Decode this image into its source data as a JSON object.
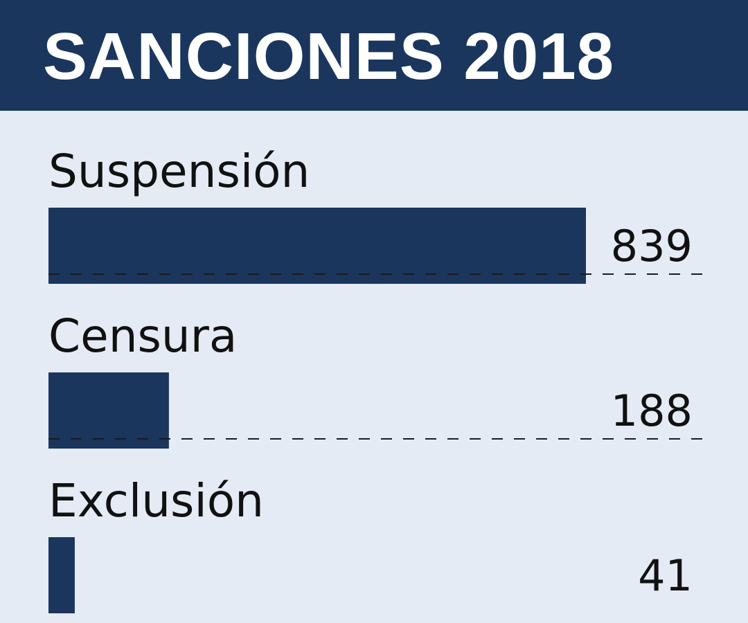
{
  "chart_data": {
    "type": "bar",
    "orientation": "horizontal",
    "title": "SANCIONES 2018",
    "categories": [
      "Suspensión",
      "Censura",
      "Exclusión"
    ],
    "values": [
      839,
      188,
      41
    ],
    "value_labels": [
      "839",
      "188",
      "41"
    ],
    "xlim": [
      0,
      839
    ],
    "grid": false,
    "legend": "none",
    "bar_color": "#1b365d",
    "header_color": "#1b365d",
    "background_color": "#e5ebf4"
  }
}
